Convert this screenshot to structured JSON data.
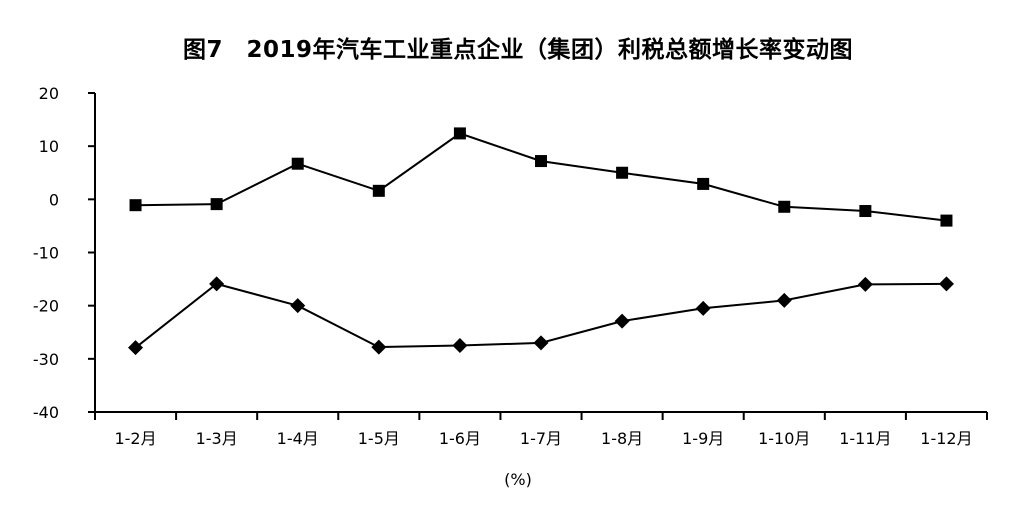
{
  "chart_data": {
    "type": "line",
    "title": "图7　2019年汽车工业重点企业（集团）利税总额增长率变动图",
    "unit": "(%)",
    "categories": [
      "1-2月",
      "1-3月",
      "1-4月",
      "1-5月",
      "1-6月",
      "1-7月",
      "1-8月",
      "1-9月",
      "1-10月",
      "1-11月",
      "1-12月"
    ],
    "ylim": [
      -40,
      20
    ],
    "yticks": [
      20,
      10,
      0,
      -10,
      -20,
      -30,
      -40
    ],
    "grid": false,
    "legend": "none",
    "series": [
      {
        "marker": "square",
        "color": "#000000",
        "values": [
          -1.1,
          -0.9,
          6.7,
          1.6,
          12.4,
          7.2,
          5.0,
          2.9,
          -1.4,
          -2.2,
          -4.0
        ]
      },
      {
        "marker": "diamond",
        "color": "#000000",
        "values": [
          -27.9,
          -15.9,
          -20.0,
          -27.8,
          -27.5,
          -27.0,
          -22.9,
          -20.5,
          -19.0,
          -16.0,
          -15.9
        ]
      }
    ]
  }
}
